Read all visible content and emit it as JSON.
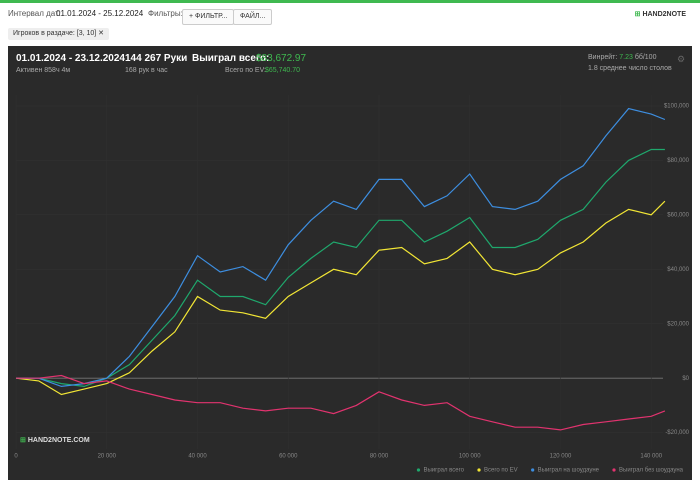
{
  "header": {
    "date_label": "Интервал дат:",
    "date_range": "01.01.2024 - 25.12.2024",
    "filters_label": "Фильтры:",
    "filter_button": "ФИЛЬТР...",
    "file_button": "ФАЙЛ...",
    "logo": "HAND2NOTE"
  },
  "tag": "Игроков в раздаче: [3, 10]",
  "stats": {
    "period": "01.01.2024 - 23.12.2024",
    "active": "Активен 858ч 4м",
    "hands": "144 267 Руки",
    "hands_per_hour": "168 рук в час",
    "won_label": "Выиграл всего:",
    "won_value": "$83,672.97",
    "ev_label": "Всего по EV:",
    "ev_value": "$65,740.70",
    "winrate_label": "Винрейт:",
    "winrate_value": "7.23",
    "winrate_unit": "бб/100",
    "tables": "1.8 среднее число столов"
  },
  "watermark": "HAND2NOTE.COM",
  "chart_data": {
    "type": "line",
    "grid": true,
    "x": [
      0,
      5000,
      10000,
      15000,
      20000,
      25000,
      30000,
      35000,
      40000,
      45000,
      50000,
      55000,
      60000,
      65000,
      70000,
      75000,
      80000,
      85000,
      90000,
      95000,
      100000,
      105000,
      110000,
      115000,
      120000,
      125000,
      130000,
      135000,
      140000,
      143000
    ],
    "series": [
      {
        "name": "Выиграл всего",
        "color": "#1fa86d",
        "values": [
          0,
          0,
          -2000,
          -3000,
          0,
          5000,
          14000,
          23000,
          36000,
          30000,
          30000,
          27000,
          37000,
          44000,
          50000,
          48000,
          58000,
          58000,
          50000,
          54000,
          59000,
          48000,
          48000,
          51000,
          58000,
          62000,
          72000,
          80000,
          84000,
          84000
        ]
      },
      {
        "name": "Всего по EV",
        "color": "#f2e635",
        "values": [
          0,
          -1000,
          -6000,
          -4000,
          -2000,
          2000,
          10000,
          17000,
          30000,
          25000,
          24000,
          22000,
          30000,
          35000,
          40000,
          38000,
          47000,
          48000,
          42000,
          44000,
          50000,
          40000,
          38000,
          40000,
          46000,
          50000,
          57000,
          62000,
          60000,
          65000
        ]
      },
      {
        "name": "Выиграл на шоудауне",
        "color": "#3d8ee0",
        "values": [
          0,
          0,
          -3000,
          -2000,
          0,
          8000,
          19000,
          30000,
          45000,
          39000,
          41000,
          36000,
          49000,
          58000,
          65000,
          62000,
          73000,
          73000,
          63000,
          67000,
          75000,
          63000,
          62000,
          65000,
          73000,
          78000,
          89000,
          99000,
          97000,
          95000
        ]
      },
      {
        "name": "Выиграл без шоудауна",
        "color": "#e2336f",
        "values": [
          0,
          0,
          1000,
          -2000,
          -1000,
          -4000,
          -6000,
          -8000,
          -9000,
          -9000,
          -11000,
          -12000,
          -11000,
          -11000,
          -13000,
          -10000,
          -5000,
          -8000,
          -10000,
          -9000,
          -14000,
          -16000,
          -18000,
          -18000,
          -19000,
          -17000,
          -16000,
          -15000,
          -14000,
          -12000
        ]
      }
    ],
    "xlim": [
      0,
      147000
    ],
    "xticks": [
      0,
      {
        "value": 20000,
        "label": "20 000"
      },
      {
        "value": 40000,
        "label": "40 000"
      },
      {
        "value": 60000,
        "label": "60 000"
      },
      {
        "value": 80000,
        "label": "80 000"
      },
      {
        "value": 100000,
        "label": "100 000"
      },
      {
        "value": 120000,
        "label": "120 000"
      },
      {
        "value": 140000,
        "label": "140 000"
      }
    ],
    "ylim": [
      -26000,
      104000
    ],
    "yticks": [
      {
        "value": -20000,
        "label": "-$20,000"
      },
      {
        "value": 0,
        "label": "$0"
      },
      {
        "value": 20000,
        "label": "$20,000"
      },
      {
        "value": 40000,
        "label": "$40,000"
      },
      {
        "value": 60000,
        "label": "$60,000"
      },
      {
        "value": 80000,
        "label": "$80,000"
      },
      {
        "value": 100000,
        "label": "$100,000"
      }
    ]
  }
}
